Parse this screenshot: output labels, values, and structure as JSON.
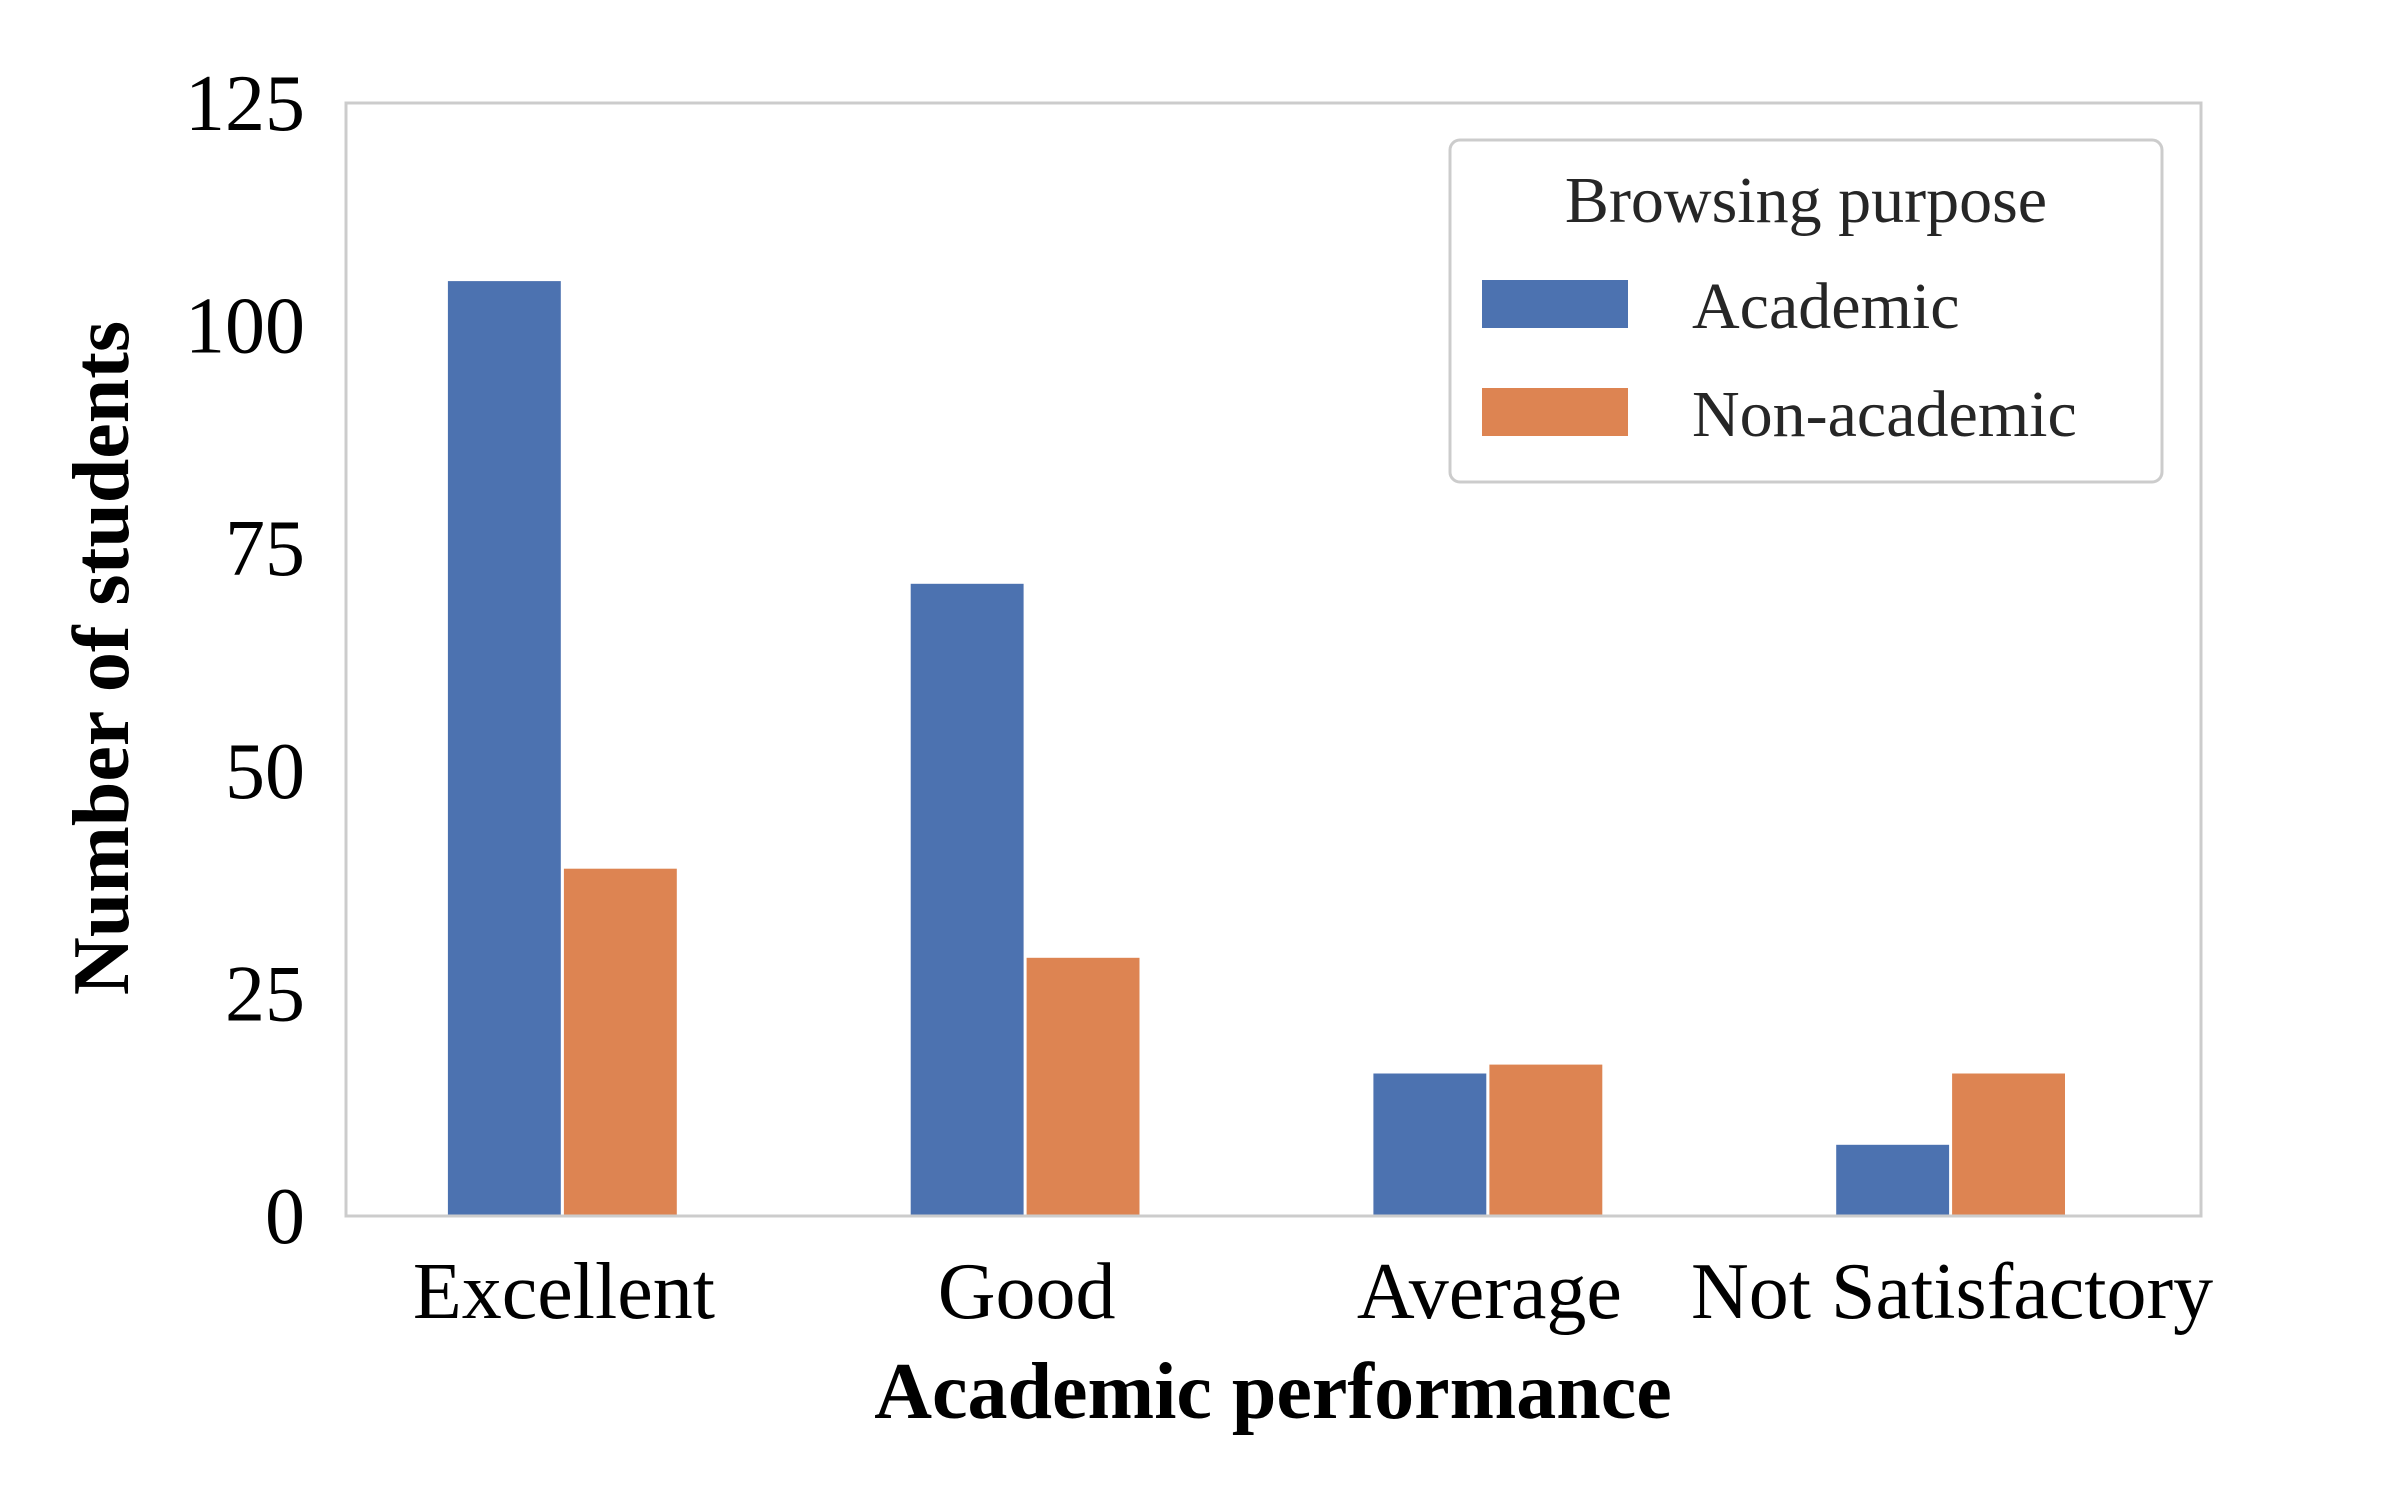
{
  "chart_data": {
    "type": "bar",
    "categories": [
      "Excellent",
      "Good",
      "Average",
      "Not Satisfactory"
    ],
    "series": [
      {
        "name": "Academic",
        "values": [
          105,
          71,
          16,
          8
        ],
        "color": "#4c72b0"
      },
      {
        "name": "Non-academic",
        "values": [
          39,
          29,
          17,
          16
        ],
        "color": "#dd8452"
      }
    ],
    "title": "",
    "xlabel": "Academic performance",
    "ylabel": "Number of students",
    "ylim": [
      0,
      125
    ],
    "yticks": [
      "0",
      "25",
      "50",
      "75",
      "100",
      "125"
    ],
    "grid": false,
    "legend": {
      "title": "Browsing purpose",
      "placement": "top-right"
    },
    "frame_color": "#cccccc"
  }
}
